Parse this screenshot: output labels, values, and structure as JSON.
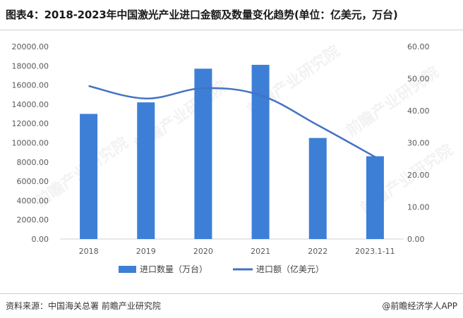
{
  "title": "图表4：2018-2023年中国激光产业进口金额及数量变化趋势(单位：亿美元，万台)",
  "source": "资料来源：中国海关总署 前瞻产业研究院",
  "brand": "@前瞻经济学人APP",
  "watermark": "前瞻产业研究院",
  "chart_data": {
    "type": "bar",
    "categories": [
      "2018",
      "2019",
      "2020",
      "2021",
      "2022",
      "2023.1-11"
    ],
    "series": [
      {
        "name": "进口数量（万台）",
        "type": "bar",
        "axis": "left",
        "color": "#3d7fd6",
        "values": [
          13000,
          14200,
          17700,
          18100,
          10500,
          8600
        ]
      },
      {
        "name": "进口额（亿美元）",
        "type": "line",
        "axis": "right",
        "color": "#4472c4",
        "values": [
          47.7,
          43.8,
          47.0,
          44.8,
          35.5,
          25.6
        ]
      }
    ],
    "left_axis": {
      "min": 0,
      "max": 20000,
      "step": 2000,
      "ticks": [
        "0.00",
        "2000.00",
        "4000.00",
        "6000.00",
        "8000.00",
        "10000.00",
        "12000.00",
        "14000.00",
        "16000.00",
        "18000.00",
        "20000.00"
      ]
    },
    "right_axis": {
      "min": 0,
      "max": 60,
      "step": 10,
      "ticks": [
        "0.00",
        "10.00",
        "20.00",
        "30.00",
        "40.00",
        "50.00",
        "60.00"
      ]
    },
    "legend": [
      "进口数量（万台）",
      "进口额（亿美元）"
    ],
    "legend_position": "bottom",
    "grid": false
  }
}
